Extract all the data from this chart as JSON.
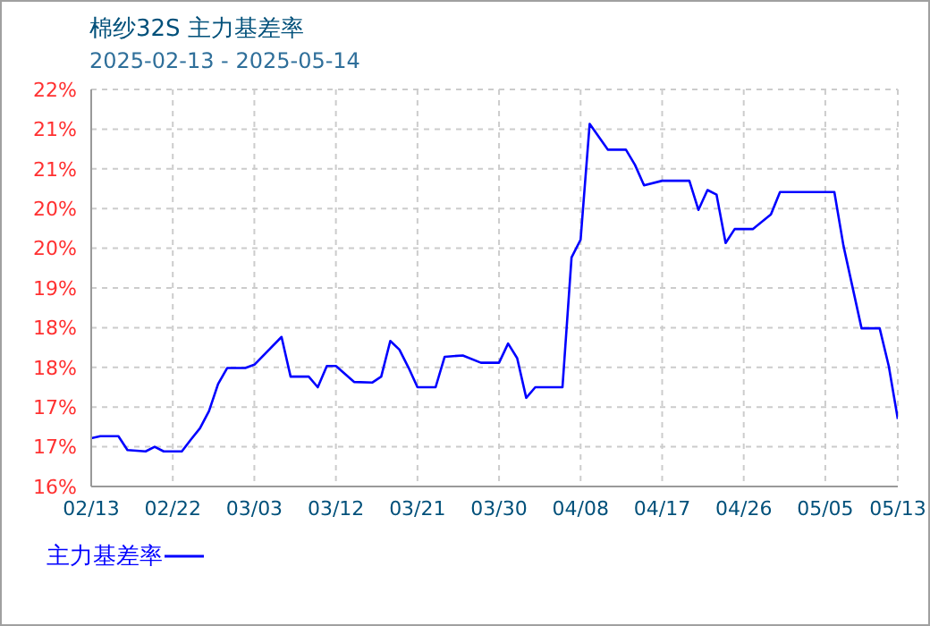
{
  "chart_data": {
    "type": "line",
    "title": "棉纱32S 主力基差率",
    "subtitle": "2025-02-13 - 2025-05-14",
    "x": [
      "2025-02-13",
      "2025-02-14",
      "2025-02-16",
      "2025-02-17",
      "2025-02-19",
      "2025-02-20",
      "2025-02-21",
      "2025-02-23",
      "2025-02-24",
      "2025-02-25",
      "2025-02-26",
      "2025-02-27",
      "2025-02-28",
      "2025-03-02",
      "2025-03-03",
      "2025-03-06",
      "2025-03-07",
      "2025-03-09",
      "2025-03-10",
      "2025-03-11",
      "2025-03-12",
      "2025-03-14",
      "2025-03-16",
      "2025-03-17",
      "2025-03-18",
      "2025-03-19",
      "2025-03-20",
      "2025-03-21",
      "2025-03-23",
      "2025-03-24",
      "2025-03-26",
      "2025-03-28",
      "2025-03-30",
      "2025-03-31",
      "2025-04-01",
      "2025-04-02",
      "2025-04-03",
      "2025-04-06",
      "2025-04-07",
      "2025-04-08",
      "2025-04-09",
      "2025-04-11",
      "2025-04-13",
      "2025-04-14",
      "2025-04-15",
      "2025-04-17",
      "2025-04-20",
      "2025-04-21",
      "2025-04-22",
      "2025-04-23",
      "2025-04-24",
      "2025-04-25",
      "2025-04-27",
      "2025-04-29",
      "2025-04-30",
      "2025-05-06",
      "2025-05-07",
      "2025-05-09",
      "2025-05-11",
      "2025-05-12",
      "2025-05-13"
    ],
    "series": [
      {
        "name": "主力基差率",
        "color": "#0000ff",
        "values": [
          16.73,
          16.76,
          16.76,
          16.55,
          16.53,
          16.6,
          16.53,
          16.53,
          16.71,
          16.88,
          17.14,
          17.55,
          17.79,
          17.79,
          17.84,
          18.26,
          17.66,
          17.66,
          17.5,
          17.82,
          17.82,
          17.58,
          17.57,
          17.66,
          18.2,
          18.07,
          17.8,
          17.5,
          17.5,
          17.96,
          17.98,
          17.87,
          17.87,
          18.16,
          17.94,
          17.34,
          17.5,
          17.5,
          19.46,
          19.73,
          21.48,
          21.09,
          21.09,
          20.86,
          20.55,
          20.62,
          20.62,
          20.18,
          20.48,
          20.41,
          19.68,
          19.89,
          19.89,
          20.11,
          20.45,
          20.45,
          19.64,
          18.39,
          18.39,
          17.82,
          17.02
        ]
      }
    ],
    "xlim": [
      "2025-02-13",
      "2025-05-13"
    ],
    "xticks": [
      {
        "value": "2025-02-13",
        "label": "02/13"
      },
      {
        "value": "2025-02-22",
        "label": "02/22"
      },
      {
        "value": "2025-03-03",
        "label": "03/03"
      },
      {
        "value": "2025-03-12",
        "label": "03/12"
      },
      {
        "value": "2025-03-21",
        "label": "03/21"
      },
      {
        "value": "2025-03-30",
        "label": "03/30"
      },
      {
        "value": "2025-04-08",
        "label": "04/08"
      },
      {
        "value": "2025-04-17",
        "label": "04/17"
      },
      {
        "value": "2025-04-26",
        "label": "04/26"
      },
      {
        "value": "2025-05-05",
        "label": "05/05"
      },
      {
        "value": "2025-05-13",
        "label": "05/13"
      }
    ],
    "ylim": [
      16,
      22
    ],
    "yticks": [
      {
        "value": 16,
        "label": "16%"
      },
      {
        "value": 16.6,
        "label": "17%"
      },
      {
        "value": 17.2,
        "label": "17%"
      },
      {
        "value": 17.8,
        "label": "18%"
      },
      {
        "value": 18.4,
        "label": "18%"
      },
      {
        "value": 19,
        "label": "19%"
      },
      {
        "value": 19.6,
        "label": "20%"
      },
      {
        "value": 20.2,
        "label": "20%"
      },
      {
        "value": 20.8,
        "label": "21%"
      },
      {
        "value": 21.4,
        "label": "21%"
      },
      {
        "value": 22,
        "label": "22%"
      }
    ],
    "grid": true,
    "legend": "bottom left"
  }
}
